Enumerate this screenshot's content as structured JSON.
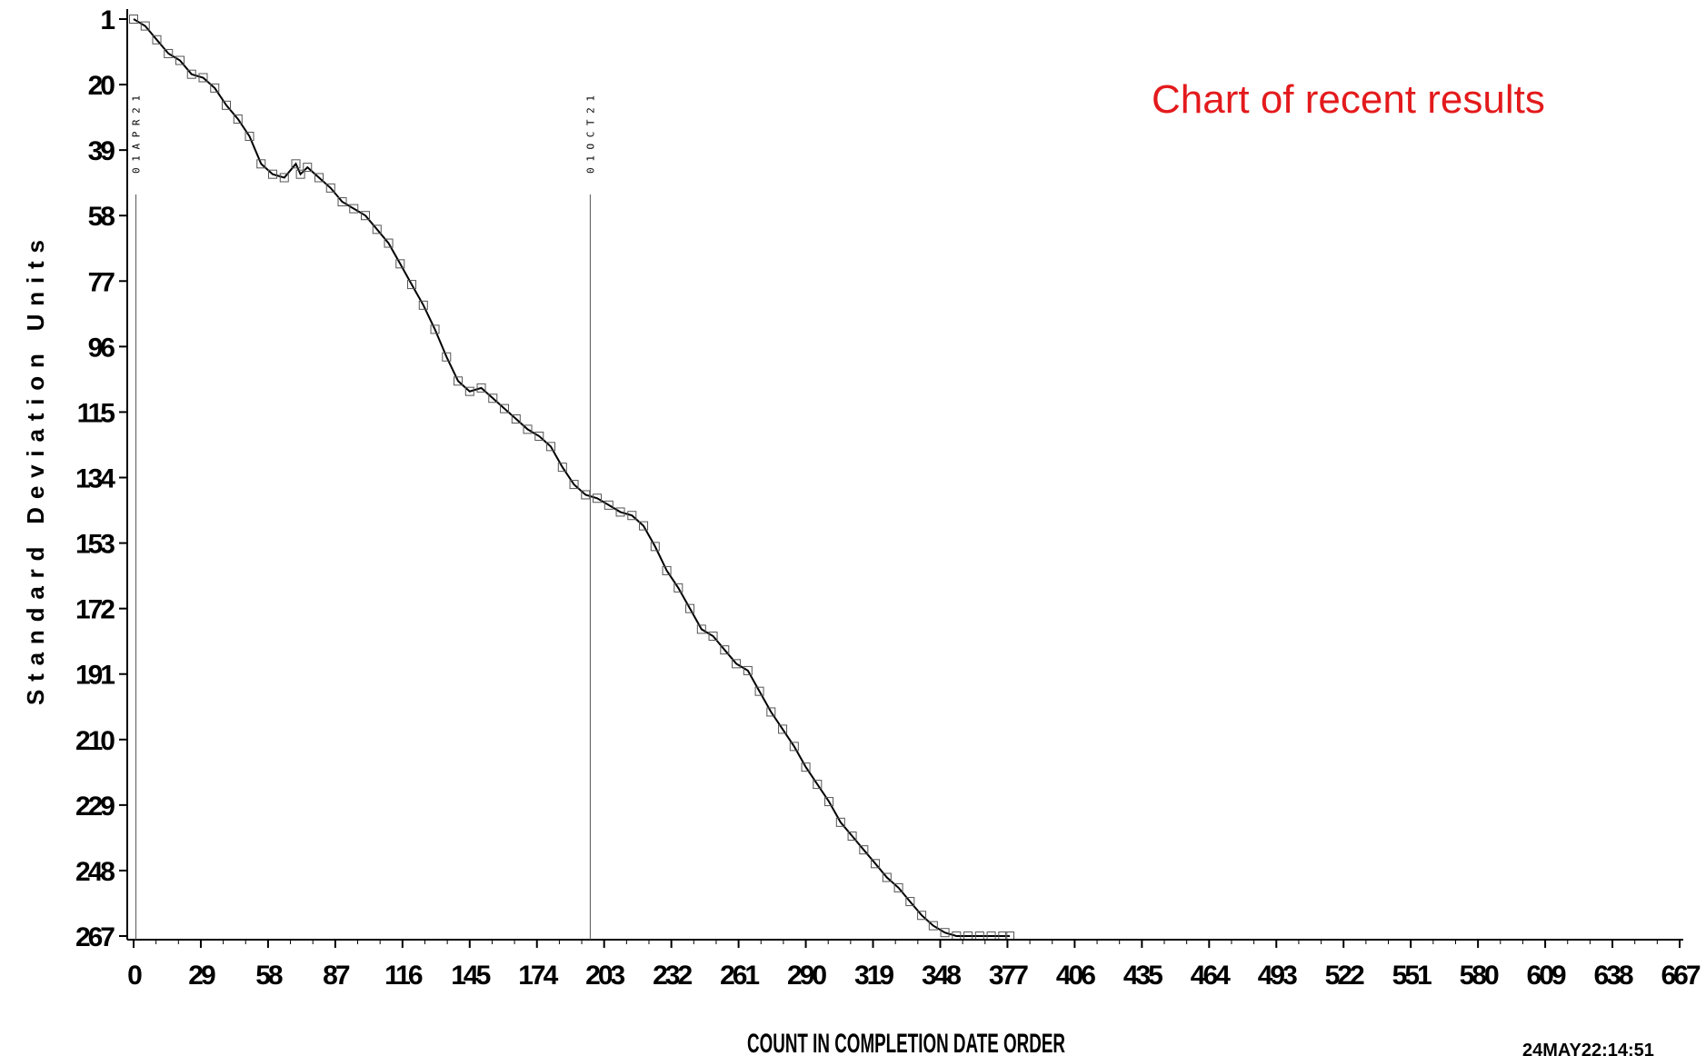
{
  "chart_data": {
    "type": "line",
    "title": "Chart of recent results",
    "xlabel": "COUNT IN COMPLETION DATE ORDER",
    "ylabel": "Standard Deviation Units",
    "timestamp": "24MAY22:14:51",
    "x_ticks": [
      "0",
      "29",
      "58",
      "87",
      "116",
      "145",
      "174",
      "203",
      "232",
      "261",
      "290",
      "319",
      "348",
      "377",
      "406",
      "435",
      "464",
      "493",
      "522",
      "551",
      "580",
      "609",
      "638",
      "667"
    ],
    "y_ticks": [
      "1",
      "20",
      "39",
      "58",
      "77",
      "96",
      "115",
      "134",
      "153",
      "172",
      "191",
      "210",
      "229",
      "248",
      "267"
    ],
    "xlim": [
      0,
      667
    ],
    "ylim": [
      1,
      267
    ],
    "y_axis_inverted": true,
    "grid": false,
    "marker": "open-square",
    "line_color": "#000000",
    "marker_color": "#555555",
    "reference_lines": [
      {
        "x": 1,
        "label": "01APR21"
      },
      {
        "x": 197,
        "label": "01OCT21"
      }
    ],
    "series": [
      {
        "x": [
          0,
          5,
          10,
          15,
          20,
          25,
          30,
          35,
          40,
          45,
          50,
          55,
          60,
          65,
          70,
          72,
          75,
          80,
          85,
          90,
          95,
          100,
          105,
          110,
          115,
          120,
          125,
          130,
          135,
          140,
          145,
          150,
          155,
          160,
          165,
          170,
          175,
          180,
          185,
          190,
          195,
          200,
          205,
          210,
          215,
          220,
          225,
          230,
          235,
          240,
          245,
          250,
          255,
          260,
          265,
          270,
          275,
          280,
          285,
          290,
          295,
          300,
          305,
          310,
          315,
          320,
          325,
          330,
          335,
          340,
          345,
          350,
          355,
          360,
          365,
          370,
          375,
          378
        ],
        "y": [
          1,
          3,
          7,
          11,
          13,
          17,
          18,
          21,
          26,
          30,
          35,
          43,
          46,
          47,
          43,
          46,
          44,
          47,
          50,
          54,
          56,
          58,
          62,
          66,
          72,
          78,
          84,
          91,
          99,
          106,
          109,
          108,
          111,
          114,
          117,
          120,
          122,
          125,
          131,
          136,
          139,
          140,
          142,
          144,
          145,
          148,
          154,
          161,
          166,
          172,
          178,
          180,
          184,
          188,
          190,
          196,
          202,
          207,
          212,
          218,
          223,
          228,
          234,
          238,
          242,
          246,
          250,
          253,
          257,
          261,
          264,
          266,
          267,
          267,
          267,
          267,
          267,
          267
        ]
      }
    ]
  }
}
